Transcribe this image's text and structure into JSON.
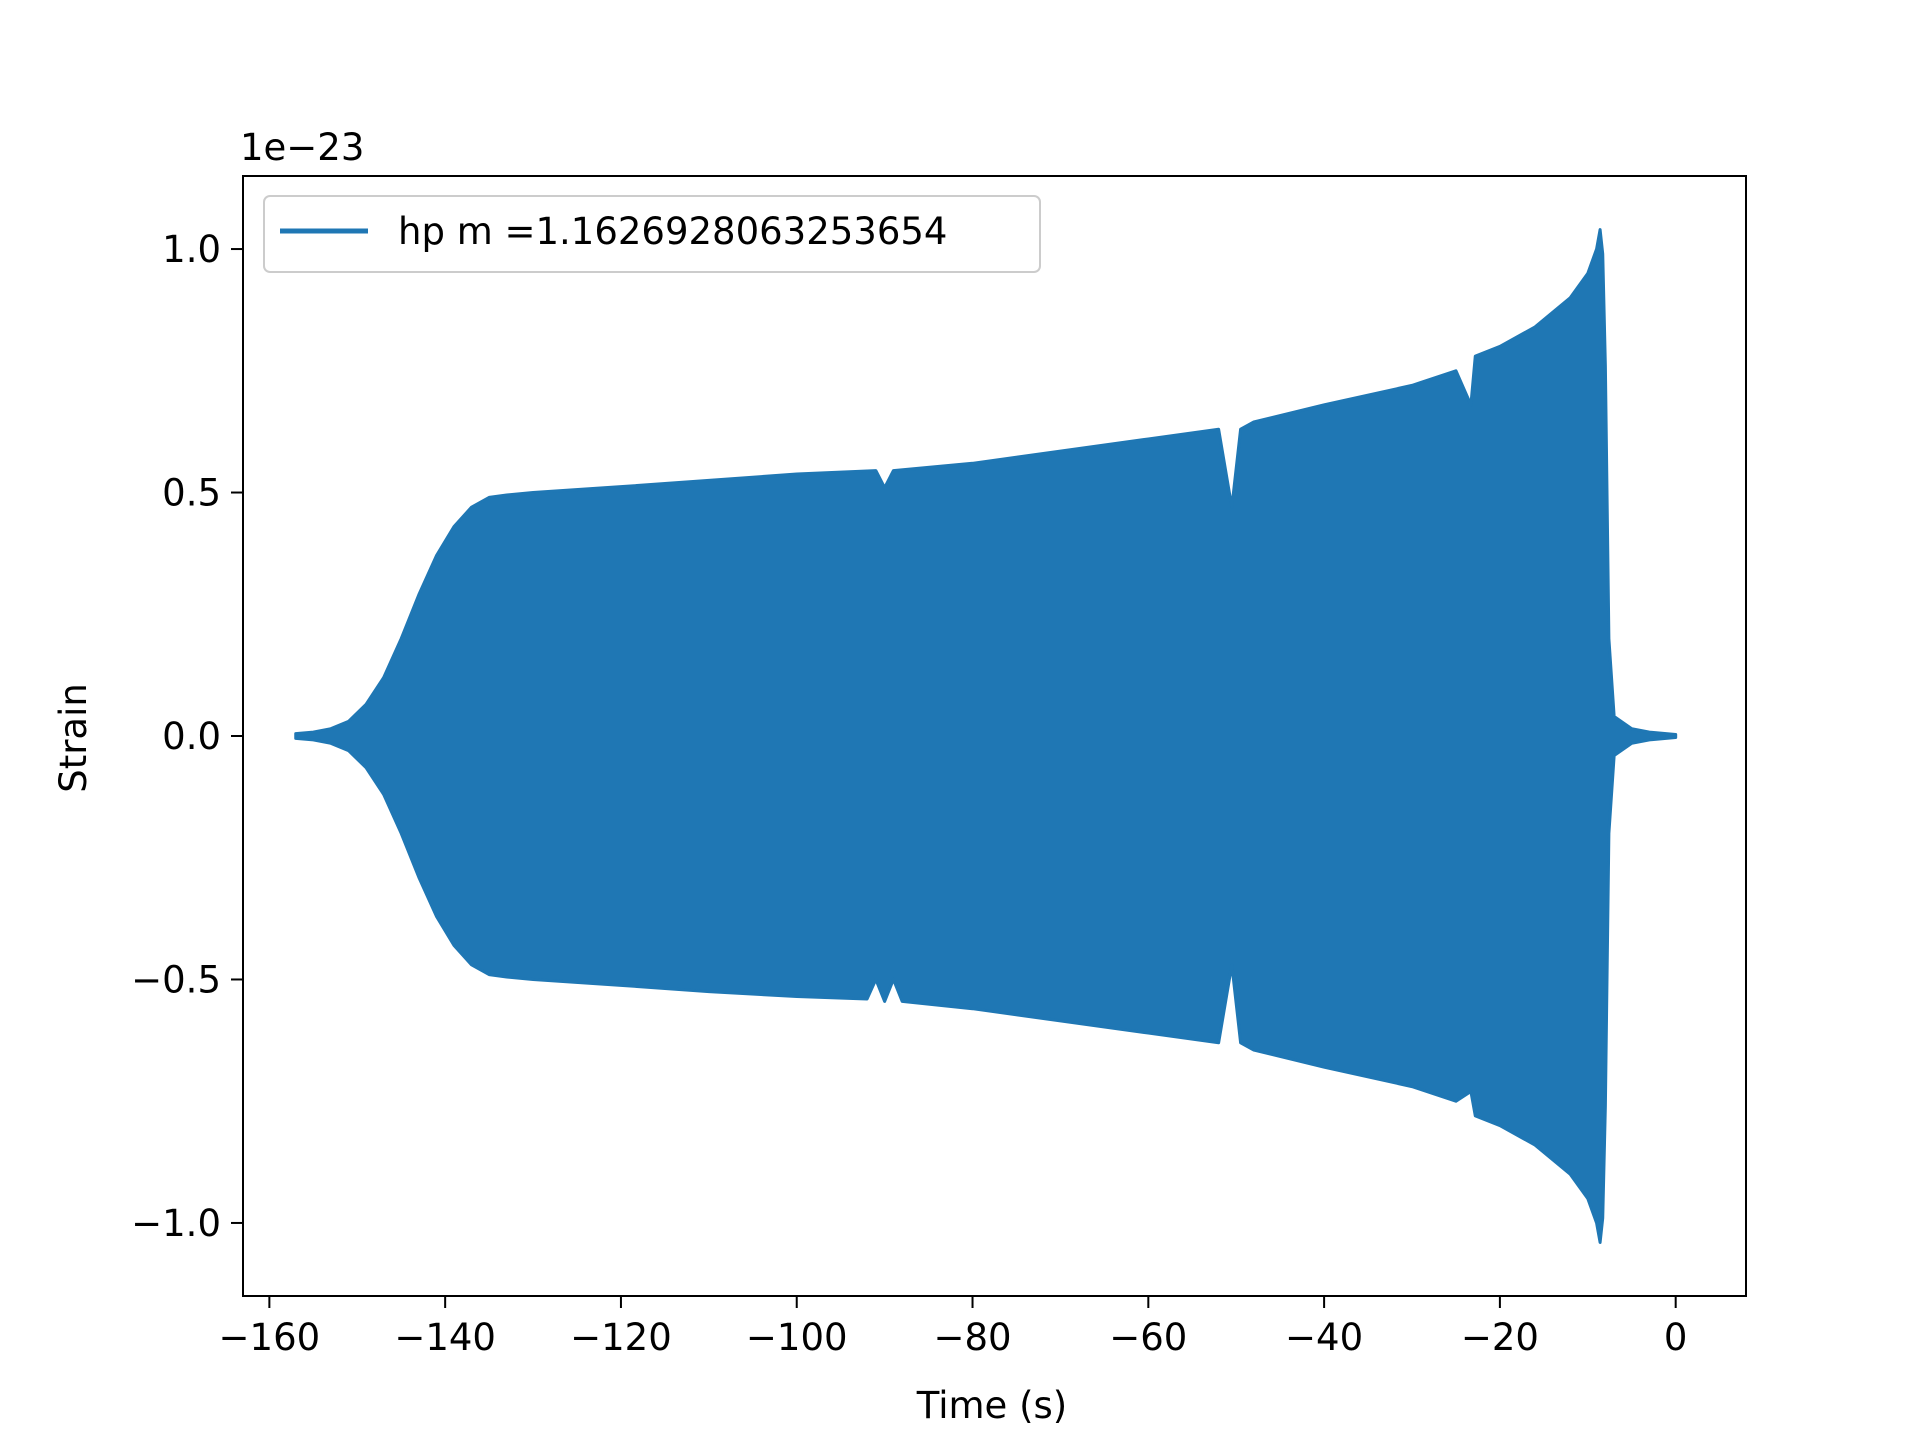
{
  "chart_data": {
    "type": "line",
    "title": "",
    "xlabel": "Time (s)",
    "ylabel": "Strain",
    "y_offset_label": "1e−23",
    "xlim": [
      -163,
      8
    ],
    "ylim": [
      -1.15,
      1.15
    ],
    "x_ticks": [
      -160,
      -140,
      -120,
      -100,
      -80,
      -60,
      -40,
      -20,
      0
    ],
    "x_tick_labels": [
      "−160",
      "−140",
      "−120",
      "−100",
      "−80",
      "−60",
      "−40",
      "−20",
      "0"
    ],
    "y_ticks": [
      -1.0,
      -0.5,
      0.0,
      0.5,
      1.0
    ],
    "y_tick_labels": [
      "−1.0",
      "−0.5",
      "0.0",
      "0.5",
      "1.0"
    ],
    "grid": false,
    "legend": {
      "placement": "top-left"
    },
    "series": [
      {
        "name": "hp m =1.1626928063253654",
        "color": "#1f77b4",
        "envelope_upper": {
          "x": [
            -157,
            -155,
            -153,
            -151,
            -149,
            -147,
            -145,
            -143,
            -141,
            -139,
            -137,
            -135,
            -133,
            -130,
            -120,
            -110,
            -100,
            -91,
            -90,
            -89,
            -80,
            -70,
            -60,
            -52,
            -50.5,
            -49.5,
            -48,
            -40,
            -30,
            -25,
            -23.3,
            -22.8,
            -20,
            -16,
            -12,
            -10,
            -9,
            -8.6,
            -8.3,
            -8,
            -7.6,
            -7,
            -5,
            -3,
            0
          ],
          "y": [
            0.005,
            0.008,
            0.015,
            0.03,
            0.065,
            0.12,
            0.2,
            0.29,
            0.37,
            0.43,
            0.47,
            0.49,
            0.495,
            0.5,
            0.512,
            0.525,
            0.538,
            0.545,
            0.51,
            0.545,
            0.56,
            0.585,
            0.61,
            0.63,
            0.47,
            0.63,
            0.645,
            0.68,
            0.72,
            0.75,
            0.68,
            0.78,
            0.8,
            0.84,
            0.9,
            0.95,
            1.0,
            1.04,
            0.99,
            0.76,
            0.2,
            0.04,
            0.015,
            0.008,
            0.003
          ]
        },
        "envelope_lower": {
          "x": [
            -157,
            -155,
            -153,
            -151,
            -149,
            -147,
            -145,
            -143,
            -141,
            -139,
            -137,
            -135,
            -133,
            -130,
            -120,
            -110,
            -100,
            -92,
            -91,
            -90,
            -89,
            -88,
            -80,
            -70,
            -60,
            -52,
            -50.5,
            -49.5,
            -48,
            -40,
            -30,
            -25,
            -23.3,
            -22.8,
            -20,
            -16,
            -12,
            -10,
            -9,
            -8.6,
            -8.3,
            -8,
            -7.6,
            -7,
            -5,
            -3,
            0
          ],
          "y": [
            -0.005,
            -0.008,
            -0.015,
            -0.03,
            -0.065,
            -0.12,
            -0.2,
            -0.29,
            -0.37,
            -0.43,
            -0.47,
            -0.49,
            -0.495,
            -0.5,
            -0.512,
            -0.525,
            -0.535,
            -0.54,
            -0.5,
            -0.545,
            -0.5,
            -0.545,
            -0.56,
            -0.585,
            -0.61,
            -0.63,
            -0.47,
            -0.63,
            -0.645,
            -0.68,
            -0.72,
            -0.75,
            -0.73,
            -0.78,
            -0.8,
            -0.84,
            -0.9,
            -0.95,
            -1.0,
            -1.04,
            -0.99,
            -0.76,
            -0.2,
            -0.04,
            -0.015,
            -0.008,
            -0.003
          ]
        }
      }
    ]
  }
}
